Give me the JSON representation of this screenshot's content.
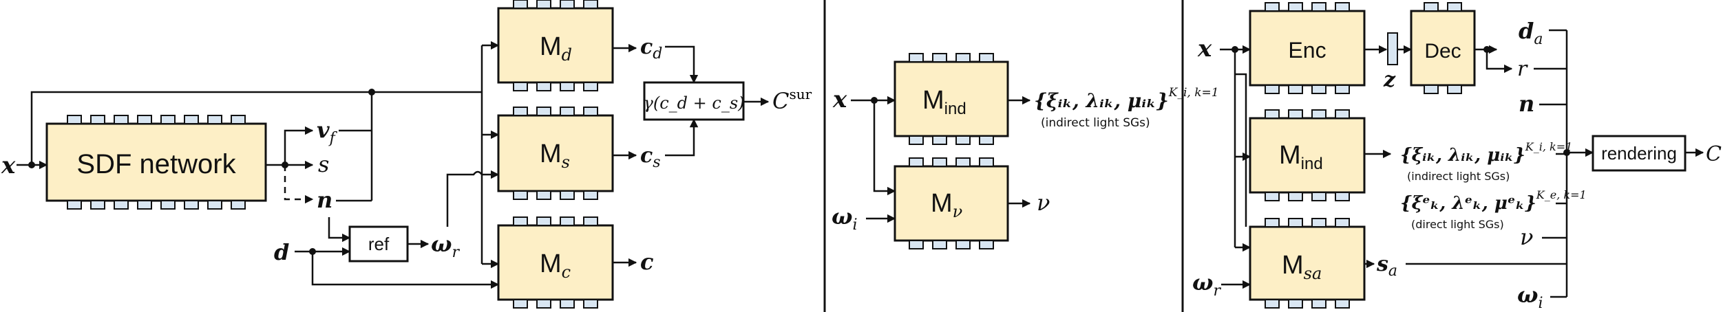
{
  "left_panel": {
    "input_x": "x",
    "sdf_network": "SDF network",
    "v_f": "v",
    "v_f_sub": "f",
    "s": "s",
    "n": "n",
    "d": "d",
    "ref": "ref",
    "omega_r": "ω",
    "omega_r_sub": "r",
    "m_d": "M",
    "m_d_sub": "d",
    "m_s": "M",
    "m_s_sub": "s",
    "m_c": "M",
    "m_c_sub": "c",
    "c_d": "c",
    "c_d_sub": "d",
    "c_s": "c",
    "c_s_sub": "s",
    "c": "c",
    "combine": "γ(c_d + c_s)",
    "c_sur": "C",
    "c_sur_sup": "sur"
  },
  "middle_panel": {
    "input_x": "x",
    "omega_i": "ω",
    "omega_i_sub": "i",
    "m_ind": "M",
    "m_ind_sub": "ind",
    "m_nu": "M",
    "m_nu_sub": "ν",
    "indirect_sgs": "{ξᵢₖ, λᵢₖ, μᵢₖ}",
    "indirect_sgs_range": "K_i, k=1",
    "indirect_note": "(indirect light SGs)",
    "nu": "ν"
  },
  "right_panel": {
    "input_x": "x",
    "omega_r": "ω",
    "omega_r_sub": "r",
    "enc": "Enc",
    "dec": "Dec",
    "z": "z",
    "d_a": "d",
    "d_a_sub": "a",
    "r": "r",
    "n": "n",
    "m_ind": "M",
    "m_ind_sub": "ind",
    "m_sa": "M",
    "m_sa_sub": "sa",
    "indirect_sgs": "{ξᵢₖ, λᵢₖ, μᵢₖ}",
    "indirect_sgs_range": "K_i, k=1",
    "indirect_note": "(indirect light SGs)",
    "direct_sgs": "{ξᵉₖ, λᵉₖ, μᵉₖ}",
    "direct_sgs_range": "K_e, k=1",
    "direct_note": "(direct light SGs)",
    "nu": "ν",
    "s_a": "s",
    "s_a_sub": "a",
    "omega_i": "ω",
    "omega_i_sub": "i",
    "rendering": "rendering",
    "output_c": "C"
  }
}
